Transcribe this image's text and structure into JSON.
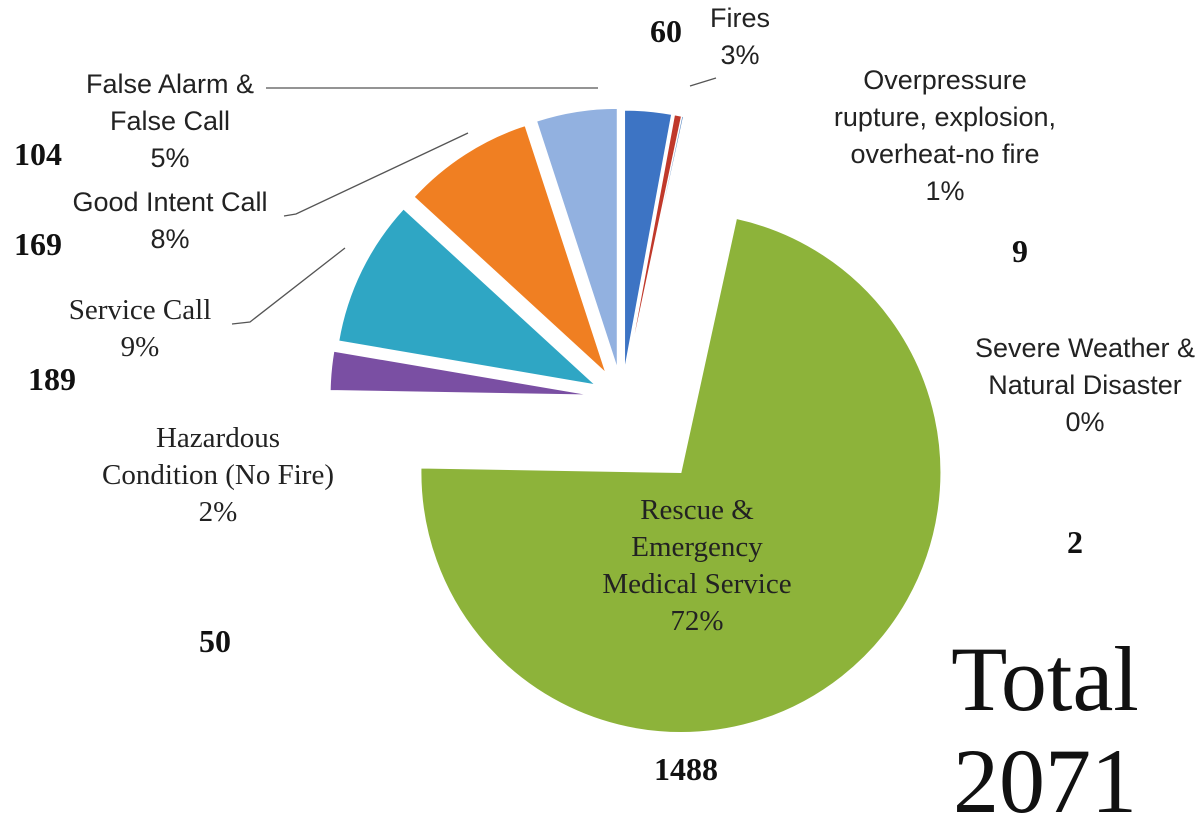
{
  "chart_data": {
    "type": "pie",
    "categories": [
      "Fires",
      "Overpressure rupture, explosion, overheat-no fire",
      "Severe Weather & Natural Disaster",
      "Rescue & Emergency Medical Service",
      "Hazardous Condition (No Fire)",
      "Service Call",
      "Good Intent Call",
      "False Alarm & False Call"
    ],
    "values": [
      60,
      9,
      2,
      1488,
      50,
      189,
      169,
      104
    ],
    "percent_labels": [
      "3%",
      "1%",
      "0%",
      "72%",
      "2%",
      "9%",
      "8%",
      "5%"
    ],
    "colors": [
      "#3d74c4",
      "#c0392b",
      "#4f81bd",
      "#8db33a",
      "#7a4fa3",
      "#2fa6c4",
      "#f07f22",
      "#92b1e0"
    ],
    "total_label": "Total",
    "total": 2071
  }
}
